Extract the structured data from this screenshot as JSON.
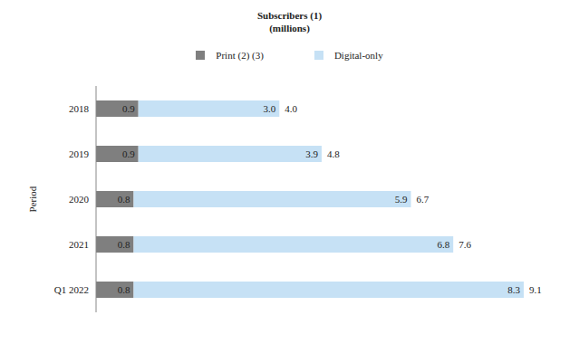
{
  "chart_data": {
    "type": "bar",
    "orientation": "horizontal",
    "stacked": true,
    "title": "Subscribers (1)",
    "subtitle": "(millions)",
    "ylabel": "Period",
    "categories": [
      "2018",
      "2019",
      "2020",
      "2021",
      "Q1 2022"
    ],
    "series": [
      {
        "name": "Print (2) (3)",
        "color": "#7f7f7f",
        "values": [
          0.9,
          0.9,
          0.8,
          0.8,
          0.8
        ]
      },
      {
        "name": "Digital-only",
        "color": "#c6e1f5",
        "values": [
          3.0,
          3.9,
          5.9,
          6.8,
          8.3
        ],
        "value_labels": [
          "3.0",
          "3.9",
          "5.9",
          "6.8",
          "8.3"
        ]
      }
    ],
    "totals": {
      "values": [
        4.0,
        4.8,
        6.7,
        7.6,
        9.1
      ],
      "value_labels": [
        "4.0",
        "4.8",
        "6.7",
        "7.6",
        "9.1"
      ]
    },
    "data_labels": true,
    "tick_labels": "y",
    "legend": "top"
  }
}
